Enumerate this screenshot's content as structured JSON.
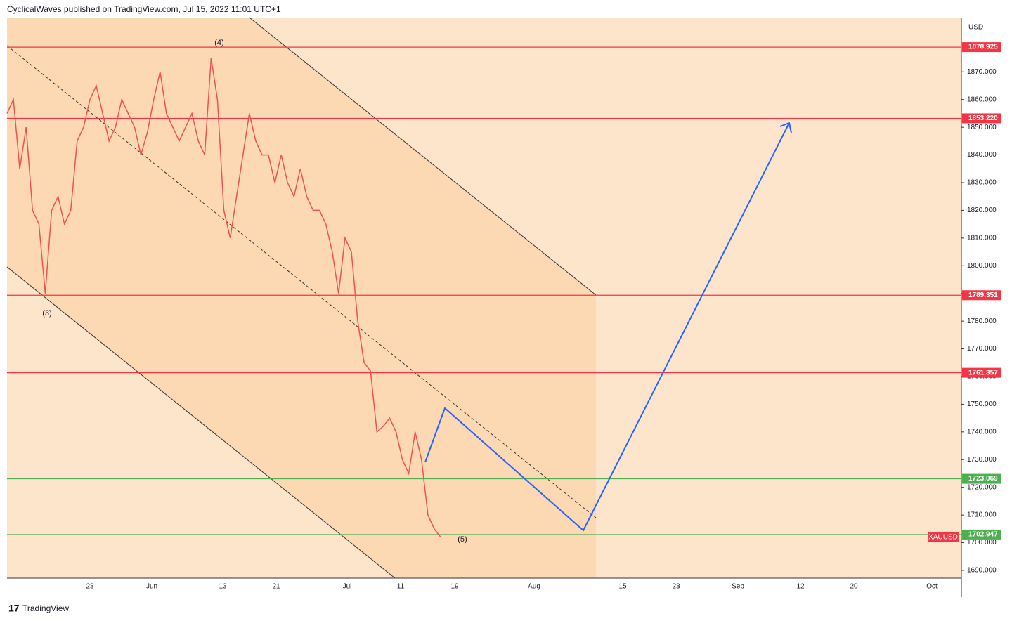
{
  "chart_data": {
    "type": "line",
    "title": "CyclicalWaves published on TradingView.com, Jul 15, 2022 11:01 UTC+1",
    "currency": "USD",
    "symbol": "XAUUSD",
    "footer": "TradingView",
    "series": [
      {
        "name": "XAUUSD",
        "color": "#ef5350",
        "values": [
          1855,
          1860,
          1835,
          1850,
          1820,
          1815,
          1790,
          1820,
          1825,
          1815,
          1820,
          1845,
          1850,
          1860,
          1865,
          1855,
          1845,
          1850,
          1860,
          1855,
          1850,
          1840,
          1848,
          1860,
          1870,
          1855,
          1850,
          1845,
          1850,
          1855,
          1845,
          1840,
          1875,
          1860,
          1820,
          1810,
          1825,
          1840,
          1855,
          1845,
          1840,
          1840,
          1830,
          1840,
          1830,
          1825,
          1835,
          1825,
          1820,
          1820,
          1815,
          1805,
          1790,
          1810,
          1805,
          1780,
          1765,
          1762,
          1740,
          1742,
          1745,
          1740,
          1730,
          1725,
          1740,
          1730,
          1710,
          1705,
          1702
        ]
      }
    ],
    "ylim": [
      1687.2,
      1889.6
    ],
    "yticks": [
      {
        "value": 1690,
        "label": "1690.000"
      },
      {
        "value": 1700,
        "label": "1700.000"
      },
      {
        "value": 1710,
        "label": "1710.000"
      },
      {
        "value": 1720,
        "label": "1720.000"
      },
      {
        "value": 1730,
        "label": "1730.000"
      },
      {
        "value": 1740,
        "label": "1740.000"
      },
      {
        "value": 1750,
        "label": "1750.000"
      },
      {
        "value": 1760,
        "label": "1760.000"
      },
      {
        "value": 1770,
        "label": "1770.000"
      },
      {
        "value": 1780,
        "label": "1780.000"
      },
      {
        "value": 1790,
        "label": "1790.000"
      },
      {
        "value": 1800,
        "label": "1800.000"
      },
      {
        "value": 1810,
        "label": "1810.000"
      },
      {
        "value": 1820,
        "label": "1820.000"
      },
      {
        "value": 1830,
        "label": "1830.000"
      },
      {
        "value": 1840,
        "label": "1840.000"
      },
      {
        "value": 1850,
        "label": "1850.000"
      },
      {
        "value": 1860,
        "label": "1860.000"
      },
      {
        "value": 1870,
        "label": "1870.000"
      }
    ],
    "x_labels": [
      "23",
      "Jun",
      "13",
      "21",
      "Jul",
      "11",
      "19",
      "Aug",
      "15",
      "23",
      "Sep",
      "12",
      "20",
      "Oct"
    ],
    "levels": [
      {
        "value": 1878.925,
        "label": "1878.925",
        "color": "#f23645"
      },
      {
        "value": 1853.22,
        "label": "1853.220",
        "color": "#f23645"
      },
      {
        "value": 1789.351,
        "label": "1789.351",
        "color": "#f23645"
      },
      {
        "value": 1761.357,
        "label": "1761.357",
        "color": "#f23645"
      },
      {
        "value": 1723.069,
        "label": "1723.069",
        "color": "#4caf50"
      },
      {
        "value": 1702.947,
        "label": "1702.947",
        "color": "#4caf50"
      }
    ],
    "last_price": 1702,
    "annotations": [
      "(3)",
      "(4)",
      "(5)"
    ]
  }
}
